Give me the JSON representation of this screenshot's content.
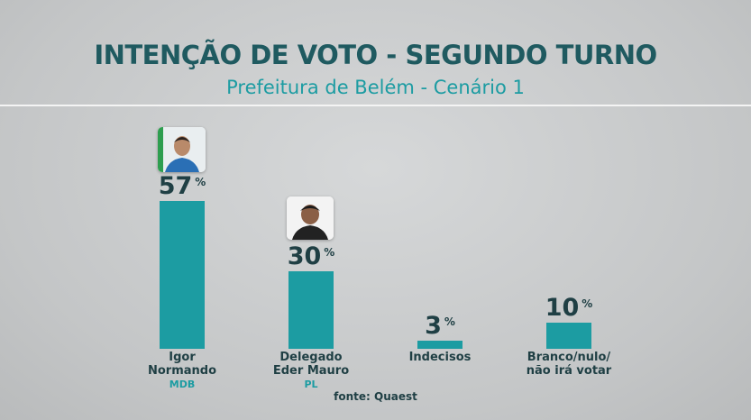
{
  "chart_data": {
    "type": "bar",
    "title": "INTENÇÃO DE VOTO - SEGUNDO TURNO",
    "subtitle": "Prefeitura de Belém - Cenário 1",
    "categories": [
      "Igor\nNormando",
      "Delegado\nEder Mauro",
      "Indecisos",
      "Branco/nulo/\nnão irá votar"
    ],
    "parties": [
      "MDB",
      "PL",
      null,
      null
    ],
    "values": [
      57,
      30,
      3,
      10
    ],
    "value_labels": [
      "57%",
      "30%",
      "3%",
      "10%"
    ],
    "color": "#1c9ca2",
    "source": "fonte: Quaest"
  }
}
